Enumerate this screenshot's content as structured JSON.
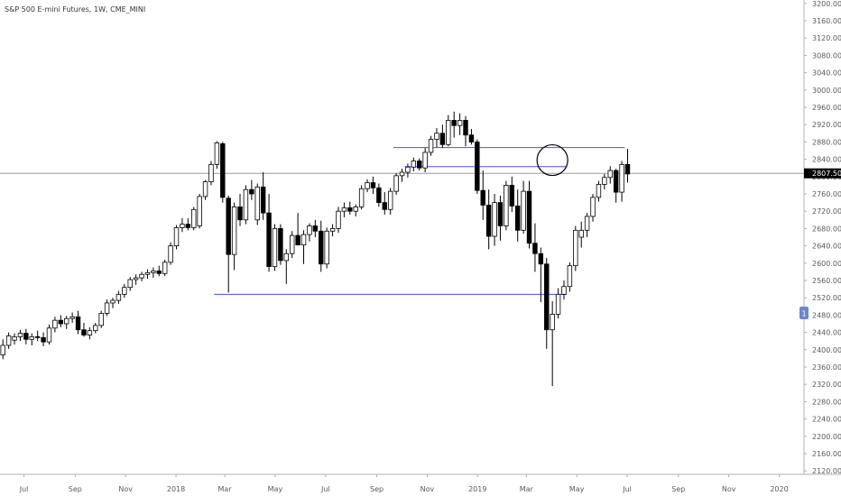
{
  "title": "S&P 500 E-mini Futures, 1W, CME_MINI",
  "current_price_label": "2807.50",
  "side_badge": "1",
  "colors": {
    "up_fill": "#ffffff",
    "down_fill": "#000000",
    "wick": "#000000",
    "hline": "#4a4cff",
    "price_line": "#9a9a9a",
    "axis_line": "#b0b0b0",
    "badge": "#6d87c7",
    "circle": "#000000"
  },
  "x_axis_labels": [
    "Jul",
    "Sep",
    "Nov",
    "2018",
    "Mar",
    "May",
    "Jul",
    "Sep",
    "Nov",
    "2019",
    "Mar",
    "May",
    "Jul",
    "Sep",
    "Nov",
    "2020"
  ],
  "y_axis_labels": [
    "3200.00",
    "3160.00",
    "3120.00",
    "3080.00",
    "3040.00",
    "3000.00",
    "2960.00",
    "2920.00",
    "2880.00",
    "2840.00",
    "2800.00",
    "2760.00",
    "2720.00",
    "2680.00",
    "2640.00",
    "2600.00",
    "2560.00",
    "2520.00",
    "2480.00",
    "2440.00",
    "2400.00",
    "2360.00",
    "2320.00",
    "2280.00",
    "2240.00",
    "2200.00",
    "2160.00",
    "2120.00"
  ],
  "chart_data": {
    "type": "candlestick",
    "title": "S&P 500 E-mini Futures, 1W, CME_MINI",
    "interval": "1W",
    "ylim": [
      2112,
      3208
    ],
    "yticks": [
      3200,
      3160,
      3120,
      3080,
      3040,
      3000,
      2960,
      2920,
      2880,
      2840,
      2800,
      2760,
      2720,
      2680,
      2640,
      2600,
      2560,
      2520,
      2480,
      2440,
      2400,
      2360,
      2320,
      2280,
      2240,
      2200,
      2160,
      2120
    ],
    "xlim": [
      "2017-06-02",
      "2020-01-31"
    ],
    "x_ticks": [
      {
        "label": "Jul",
        "date": "2017-07-01"
      },
      {
        "label": "Sep",
        "date": "2017-09-01"
      },
      {
        "label": "Nov",
        "date": "2017-11-01"
      },
      {
        "label": "2018",
        "date": "2018-01-01"
      },
      {
        "label": "Mar",
        "date": "2018-03-01"
      },
      {
        "label": "May",
        "date": "2018-05-01"
      },
      {
        "label": "Jul",
        "date": "2018-07-01"
      },
      {
        "label": "Sep",
        "date": "2018-09-01"
      },
      {
        "label": "Nov",
        "date": "2018-11-01"
      },
      {
        "label": "2019",
        "date": "2019-01-01"
      },
      {
        "label": "Mar",
        "date": "2019-03-01"
      },
      {
        "label": "May",
        "date": "2019-05-01"
      },
      {
        "label": "Jul",
        "date": "2019-07-01"
      },
      {
        "label": "Sep",
        "date": "2019-09-01"
      },
      {
        "label": "Nov",
        "date": "2019-11-01"
      },
      {
        "label": "2020",
        "date": "2020-01-01"
      }
    ],
    "current_price": 2807.5,
    "horizontal_lines": [
      {
        "y": 2867,
        "from": "2018-09-21",
        "to": "2019-06-28"
      },
      {
        "y": 2823,
        "from": "2018-10-05",
        "to": "2019-04-19"
      },
      {
        "y": 2528,
        "from": "2018-02-16",
        "to": "2019-04-19"
      }
    ],
    "circle_annotation": {
      "date": "2019-03-29",
      "y": 2838
    },
    "candles": [
      {
        "d": "2017-06-02",
        "o": 2388,
        "h": 2424,
        "l": 2378,
        "c": 2410
      },
      {
        "d": "2017-06-09",
        "o": 2410,
        "h": 2440,
        "l": 2402,
        "c": 2432
      },
      {
        "d": "2017-06-16",
        "o": 2422,
        "h": 2438,
        "l": 2412,
        "c": 2430
      },
      {
        "d": "2017-06-23",
        "o": 2430,
        "h": 2446,
        "l": 2420,
        "c": 2438
      },
      {
        "d": "2017-06-30",
        "o": 2438,
        "h": 2448,
        "l": 2412,
        "c": 2424
      },
      {
        "d": "2017-07-07",
        "o": 2424,
        "h": 2438,
        "l": 2410,
        "c": 2430
      },
      {
        "d": "2017-07-14",
        "o": 2430,
        "h": 2444,
        "l": 2420,
        "c": 2428
      },
      {
        "d": "2017-07-21",
        "o": 2428,
        "h": 2440,
        "l": 2408,
        "c": 2418
      },
      {
        "d": "2017-07-28",
        "o": 2418,
        "h": 2458,
        "l": 2412,
        "c": 2450
      },
      {
        "d": "2017-08-04",
        "o": 2450,
        "h": 2476,
        "l": 2440,
        "c": 2468
      },
      {
        "d": "2017-08-11",
        "o": 2468,
        "h": 2480,
        "l": 2452,
        "c": 2460
      },
      {
        "d": "2017-08-18",
        "o": 2460,
        "h": 2478,
        "l": 2448,
        "c": 2472
      },
      {
        "d": "2017-08-25",
        "o": 2472,
        "h": 2486,
        "l": 2462,
        "c": 2476
      },
      {
        "d": "2017-09-01",
        "o": 2476,
        "h": 2490,
        "l": 2436,
        "c": 2446
      },
      {
        "d": "2017-09-08",
        "o": 2446,
        "h": 2462,
        "l": 2430,
        "c": 2434
      },
      {
        "d": "2017-09-15",
        "o": 2434,
        "h": 2452,
        "l": 2424,
        "c": 2444
      },
      {
        "d": "2017-09-22",
        "o": 2444,
        "h": 2462,
        "l": 2438,
        "c": 2456
      },
      {
        "d": "2017-09-29",
        "o": 2456,
        "h": 2490,
        "l": 2450,
        "c": 2484
      },
      {
        "d": "2017-10-06",
        "o": 2484,
        "h": 2516,
        "l": 2478,
        "c": 2508
      },
      {
        "d": "2017-10-13",
        "o": 2508,
        "h": 2520,
        "l": 2496,
        "c": 2514
      },
      {
        "d": "2017-10-20",
        "o": 2514,
        "h": 2536,
        "l": 2506,
        "c": 2528
      },
      {
        "d": "2017-10-27",
        "o": 2528,
        "h": 2552,
        "l": 2520,
        "c": 2544
      },
      {
        "d": "2017-11-03",
        "o": 2544,
        "h": 2568,
        "l": 2536,
        "c": 2562
      },
      {
        "d": "2017-11-10",
        "o": 2562,
        "h": 2574,
        "l": 2550,
        "c": 2566
      },
      {
        "d": "2017-11-17",
        "o": 2566,
        "h": 2580,
        "l": 2558,
        "c": 2574
      },
      {
        "d": "2017-11-24",
        "o": 2574,
        "h": 2586,
        "l": 2564,
        "c": 2578
      },
      {
        "d": "2017-12-01",
        "o": 2578,
        "h": 2590,
        "l": 2566,
        "c": 2582
      },
      {
        "d": "2017-12-08",
        "o": 2582,
        "h": 2594,
        "l": 2570,
        "c": 2576
      },
      {
        "d": "2017-12-15",
        "o": 2576,
        "h": 2608,
        "l": 2570,
        "c": 2602
      },
      {
        "d": "2017-12-22",
        "o": 2602,
        "h": 2648,
        "l": 2596,
        "c": 2640
      },
      {
        "d": "2017-12-29",
        "o": 2640,
        "h": 2688,
        "l": 2632,
        "c": 2682
      },
      {
        "d": "2018-01-05",
        "o": 2682,
        "h": 2704,
        "l": 2672,
        "c": 2690
      },
      {
        "d": "2018-01-12",
        "o": 2690,
        "h": 2704,
        "l": 2676,
        "c": 2682
      },
      {
        "d": "2018-01-19",
        "o": 2682,
        "h": 2730,
        "l": 2676,
        "c": 2724
      },
      {
        "d": "2018-01-26",
        "o": 2686,
        "h": 2760,
        "l": 2680,
        "c": 2754
      },
      {
        "d": "2018-02-02",
        "o": 2754,
        "h": 2792,
        "l": 2746,
        "c": 2788
      },
      {
        "d": "2018-02-09",
        "o": 2788,
        "h": 2836,
        "l": 2780,
        "c": 2828
      },
      {
        "d": "2018-02-16",
        "o": 2828,
        "h": 2882,
        "l": 2818,
        "c": 2878
      },
      {
        "d": "2018-02-23",
        "o": 2876,
        "h": 2880,
        "l": 2740,
        "c": 2752
      },
      {
        "d": "2018-03-02",
        "o": 2750,
        "h": 2756,
        "l": 2532,
        "c": 2620
      },
      {
        "d": "2018-03-09",
        "o": 2620,
        "h": 2740,
        "l": 2584,
        "c": 2730
      },
      {
        "d": "2018-03-16",
        "o": 2730,
        "h": 2760,
        "l": 2686,
        "c": 2700
      },
      {
        "d": "2018-03-23",
        "o": 2700,
        "h": 2780,
        "l": 2690,
        "c": 2770
      },
      {
        "d": "2018-03-30",
        "o": 2770,
        "h": 2792,
        "l": 2746,
        "c": 2760
      },
      {
        "d": "2018-04-06",
        "o": 2700,
        "h": 2784,
        "l": 2688,
        "c": 2776
      },
      {
        "d": "2018-04-13",
        "o": 2776,
        "h": 2810,
        "l": 2700,
        "c": 2716
      },
      {
        "d": "2018-04-20",
        "o": 2716,
        "h": 2760,
        "l": 2580,
        "c": 2592
      },
      {
        "d": "2018-04-27",
        "o": 2592,
        "h": 2690,
        "l": 2582,
        "c": 2680
      },
      {
        "d": "2018-05-04",
        "o": 2680,
        "h": 2690,
        "l": 2596,
        "c": 2606
      },
      {
        "d": "2018-05-11",
        "o": 2606,
        "h": 2632,
        "l": 2552,
        "c": 2622
      },
      {
        "d": "2018-05-18",
        "o": 2622,
        "h": 2674,
        "l": 2612,
        "c": 2664
      },
      {
        "d": "2018-05-25",
        "o": 2664,
        "h": 2716,
        "l": 2652,
        "c": 2642
      },
      {
        "d": "2018-06-01",
        "o": 2642,
        "h": 2676,
        "l": 2598,
        "c": 2666
      },
      {
        "d": "2018-06-08",
        "o": 2666,
        "h": 2692,
        "l": 2650,
        "c": 2686
      },
      {
        "d": "2018-06-15",
        "o": 2686,
        "h": 2700,
        "l": 2660,
        "c": 2674
      },
      {
        "d": "2018-06-22",
        "o": 2674,
        "h": 2698,
        "l": 2580,
        "c": 2598
      },
      {
        "d": "2018-06-29",
        "o": 2598,
        "h": 2682,
        "l": 2588,
        "c": 2674
      },
      {
        "d": "2018-07-06",
        "o": 2674,
        "h": 2690,
        "l": 2662,
        "c": 2680
      },
      {
        "d": "2018-07-13",
        "o": 2680,
        "h": 2730,
        "l": 2670,
        "c": 2720
      },
      {
        "d": "2018-07-20",
        "o": 2720,
        "h": 2740,
        "l": 2706,
        "c": 2728
      },
      {
        "d": "2018-07-27",
        "o": 2728,
        "h": 2742,
        "l": 2712,
        "c": 2720
      },
      {
        "d": "2018-08-03",
        "o": 2720,
        "h": 2736,
        "l": 2708,
        "c": 2730
      },
      {
        "d": "2018-08-10",
        "o": 2730,
        "h": 2780,
        "l": 2724,
        "c": 2772
      },
      {
        "d": "2018-08-17",
        "o": 2772,
        "h": 2794,
        "l": 2764,
        "c": 2786
      },
      {
        "d": "2018-08-24",
        "o": 2786,
        "h": 2800,
        "l": 2760,
        "c": 2774
      },
      {
        "d": "2018-08-31",
        "o": 2774,
        "h": 2784,
        "l": 2730,
        "c": 2740
      },
      {
        "d": "2018-09-07",
        "o": 2740,
        "h": 2764,
        "l": 2712,
        "c": 2724
      },
      {
        "d": "2018-09-14",
        "o": 2724,
        "h": 2774,
        "l": 2712,
        "c": 2766
      },
      {
        "d": "2018-09-21",
        "o": 2766,
        "h": 2808,
        "l": 2758,
        "c": 2802
      },
      {
        "d": "2018-09-28",
        "o": 2802,
        "h": 2818,
        "l": 2788,
        "c": 2810
      },
      {
        "d": "2018-10-05",
        "o": 2810,
        "h": 2830,
        "l": 2798,
        "c": 2822
      },
      {
        "d": "2018-10-12",
        "o": 2822,
        "h": 2844,
        "l": 2812,
        "c": 2836
      },
      {
        "d": "2018-10-19",
        "o": 2836,
        "h": 2842,
        "l": 2814,
        "c": 2820
      },
      {
        "d": "2018-10-26",
        "o": 2820,
        "h": 2866,
        "l": 2810,
        "c": 2856
      },
      {
        "d": "2018-11-02",
        "o": 2856,
        "h": 2894,
        "l": 2848,
        "c": 2886
      },
      {
        "d": "2018-11-09",
        "o": 2886,
        "h": 2912,
        "l": 2868,
        "c": 2900
      },
      {
        "d": "2018-11-16",
        "o": 2900,
        "h": 2920,
        "l": 2866,
        "c": 2874
      },
      {
        "d": "2018-11-23",
        "o": 2874,
        "h": 2942,
        "l": 2870,
        "c": 2930
      },
      {
        "d": "2018-11-30",
        "o": 2930,
        "h": 2950,
        "l": 2890,
        "c": 2918
      },
      {
        "d": "2018-12-07",
        "o": 2918,
        "h": 2946,
        "l": 2896,
        "c": 2930
      },
      {
        "d": "2018-12-14",
        "o": 2930,
        "h": 2940,
        "l": 2870,
        "c": 2896
      },
      {
        "d": "2018-12-21",
        "o": 2896,
        "h": 2910,
        "l": 2874,
        "c": 2880
      },
      {
        "d": "2018-12-28",
        "o": 2880,
        "h": 2886,
        "l": 2760,
        "c": 2768
      },
      {
        "d": "2019-01-04",
        "o": 2768,
        "h": 2814,
        "l": 2700,
        "c": 2734
      },
      {
        "d": "2019-01-11",
        "o": 2734,
        "h": 2770,
        "l": 2632,
        "c": 2662
      },
      {
        "d": "2019-01-18",
        "o": 2662,
        "h": 2760,
        "l": 2640,
        "c": 2740
      },
      {
        "d": "2019-01-25",
        "o": 2740,
        "h": 2756,
        "l": 2652,
        "c": 2686
      },
      {
        "d": "2019-02-01",
        "o": 2686,
        "h": 2790,
        "l": 2676,
        "c": 2780
      },
      {
        "d": "2019-02-08",
        "o": 2780,
        "h": 2800,
        "l": 2718,
        "c": 2732
      },
      {
        "d": "2019-02-15",
        "o": 2732,
        "h": 2770,
        "l": 2650,
        "c": 2676
      },
      {
        "d": "2019-02-22",
        "o": 2676,
        "h": 2790,
        "l": 2668,
        "c": 2766
      },
      {
        "d": "2019-03-01",
        "o": 2766,
        "h": 2790,
        "l": 2634,
        "c": 2646
      },
      {
        "d": "2019-03-08",
        "o": 2646,
        "h": 2692,
        "l": 2580,
        "c": 2622
      },
      {
        "d": "2019-03-15",
        "o": 2622,
        "h": 2636,
        "l": 2510,
        "c": 2598
      },
      {
        "d": "2019-03-22",
        "o": 2598,
        "h": 2612,
        "l": 2402,
        "c": 2446
      },
      {
        "d": "2019-03-29",
        "o": 2446,
        "h": 2512,
        "l": 2316,
        "c": 2482
      },
      {
        "d": "2019-04-05",
        "o": 2482,
        "h": 2542,
        "l": 2472,
        "c": 2528
      },
      {
        "d": "2019-04-12",
        "o": 2528,
        "h": 2560,
        "l": 2516,
        "c": 2546
      },
      {
        "d": "2019-04-19",
        "o": 2546,
        "h": 2602,
        "l": 2534,
        "c": 2594
      },
      {
        "d": "2019-04-26",
        "o": 2594,
        "h": 2686,
        "l": 2582,
        "c": 2676
      },
      {
        "d": "2019-05-03",
        "o": 2660,
        "h": 2696,
        "l": 2636,
        "c": 2676
      },
      {
        "d": "2019-05-10",
        "o": 2676,
        "h": 2716,
        "l": 2660,
        "c": 2708
      },
      {
        "d": "2019-05-17",
        "o": 2708,
        "h": 2760,
        "l": 2696,
        "c": 2752
      },
      {
        "d": "2019-05-24",
        "o": 2752,
        "h": 2790,
        "l": 2742,
        "c": 2782
      },
      {
        "d": "2019-05-31",
        "o": 2782,
        "h": 2806,
        "l": 2770,
        "c": 2798
      },
      {
        "d": "2019-06-07",
        "o": 2798,
        "h": 2824,
        "l": 2784,
        "c": 2814
      },
      {
        "d": "2019-06-14",
        "o": 2814,
        "h": 2818,
        "l": 2740,
        "c": 2764
      },
      {
        "d": "2019-06-21",
        "o": 2764,
        "h": 2836,
        "l": 2742,
        "c": 2828
      },
      {
        "d": "2019-06-28",
        "o": 2828,
        "h": 2864,
        "l": 2786,
        "c": 2806
      }
    ]
  }
}
